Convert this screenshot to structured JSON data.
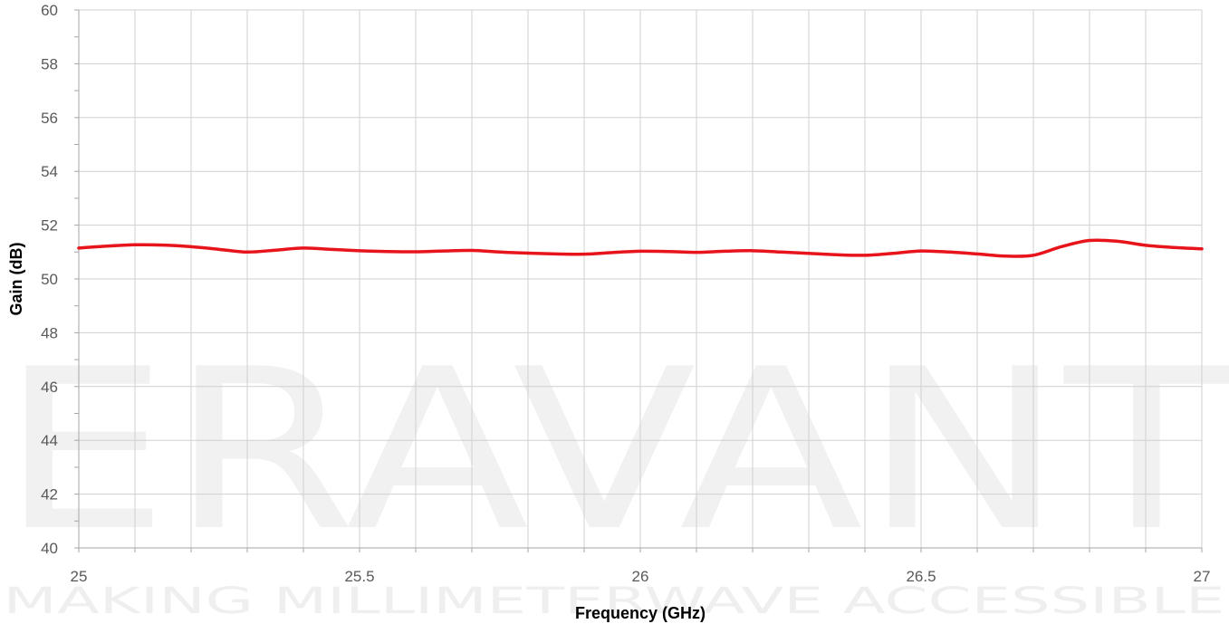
{
  "watermark": {
    "brand": "ERAVANT",
    "tagline": "MAKING MILLIMETERWAVE ACCESSIBLE"
  },
  "chart_data": {
    "type": "line",
    "title": "",
    "xlabel": "Frequency (GHz)",
    "ylabel": "Gain (dB)",
    "xlim": [
      25,
      27
    ],
    "ylim": [
      40,
      60
    ],
    "x_ticks": [
      "25",
      "25.5",
      "26",
      "26.5",
      "27"
    ],
    "y_ticks": [
      "40",
      "42",
      "44",
      "46",
      "48",
      "50",
      "52",
      "54",
      "56",
      "58",
      "60"
    ],
    "grid": true,
    "colors": {
      "line": "#e8141c",
      "grid": "#d0d0d0",
      "axis": "#a6a6a6"
    },
    "series": [
      {
        "x": [
          25.0,
          25.05,
          25.1,
          25.15,
          25.2,
          25.25,
          25.3,
          25.35,
          25.4,
          25.45,
          25.5,
          25.55,
          25.6,
          25.65,
          25.7,
          25.75,
          25.8,
          25.85,
          25.9,
          25.95,
          26.0,
          26.05,
          26.1,
          26.15,
          26.2,
          26.25,
          26.3,
          26.35,
          26.4,
          26.45,
          26.5,
          26.55,
          26.6,
          26.65,
          26.7,
          26.75,
          26.8,
          26.85,
          26.9,
          26.95,
          27.0
        ],
        "y": [
          51.15,
          51.22,
          51.27,
          51.26,
          51.2,
          51.1,
          51.0,
          51.07,
          51.15,
          51.1,
          51.05,
          51.02,
          51.01,
          51.04,
          51.06,
          51.0,
          50.96,
          50.93,
          50.92,
          50.98,
          51.03,
          51.02,
          50.99,
          51.03,
          51.05,
          51.0,
          50.95,
          50.9,
          50.88,
          50.95,
          51.04,
          51.0,
          50.93,
          50.85,
          50.88,
          51.2,
          51.43,
          51.4,
          51.25,
          51.17,
          51.12
        ]
      }
    ]
  }
}
